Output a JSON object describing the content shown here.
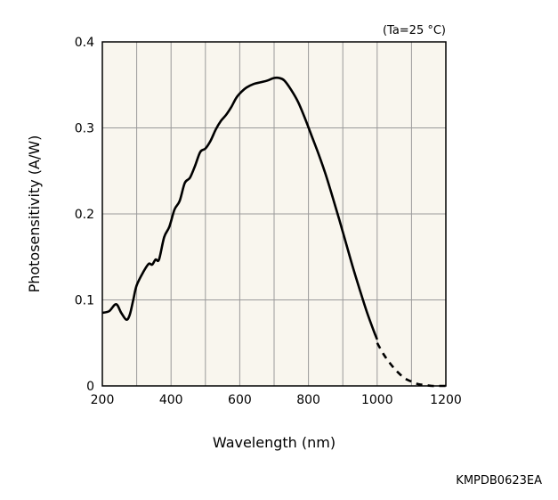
{
  "chart_data": {
    "type": "line",
    "xlabel": "Wavelength (nm)",
    "ylabel": "Photosensitivity (A/W)",
    "condition": "(Ta=25 °C)",
    "code": "KMPDB0623EA",
    "xlim": [
      200,
      1200
    ],
    "ylim": [
      0,
      0.4
    ],
    "x_ticks": [
      200,
      400,
      600,
      800,
      1000,
      1200
    ],
    "x_tick_labels": [
      "200",
      "400",
      "600",
      "800",
      "1000",
      "1200"
    ],
    "y_ticks": [
      0,
      0.1,
      0.2,
      0.3,
      0.4
    ],
    "y_tick_labels": [
      "0",
      "0.1",
      "0.2",
      "0.3",
      "0.4"
    ],
    "grid": true,
    "colors": {
      "plot_background": "#f9f6ee",
      "grid": "#9a9a9a",
      "line": "#000000"
    },
    "series": [
      {
        "style": "solid",
        "x": [
          200,
          220,
          240,
          255,
          270,
          280,
          290,
          300,
          320,
          335,
          345,
          355,
          365,
          380,
          395,
          410,
          425,
          440,
          455,
          470,
          485,
          500,
          515,
          530,
          545,
          560,
          575,
          590,
          605,
          620,
          640,
          660,
          680,
          700,
          715,
          730,
          750,
          770,
          790,
          810,
          830,
          850,
          870,
          890,
          910,
          930,
          950,
          970,
          990,
          1000
        ],
        "y": [
          0.085,
          0.087,
          0.095,
          0.085,
          0.077,
          0.083,
          0.1,
          0.117,
          0.133,
          0.142,
          0.141,
          0.147,
          0.147,
          0.173,
          0.185,
          0.205,
          0.215,
          0.236,
          0.242,
          0.256,
          0.272,
          0.276,
          0.285,
          0.298,
          0.308,
          0.315,
          0.324,
          0.335,
          0.342,
          0.347,
          0.351,
          0.353,
          0.355,
          0.358,
          0.358,
          0.355,
          0.344,
          0.33,
          0.311,
          0.29,
          0.269,
          0.246,
          0.22,
          0.193,
          0.165,
          0.137,
          0.111,
          0.086,
          0.064,
          0.054
        ]
      },
      {
        "style": "dashed",
        "x": [
          1000,
          1020,
          1040,
          1060,
          1080,
          1100,
          1120,
          1140,
          1160,
          1180,
          1200
        ],
        "y": [
          0.05,
          0.036,
          0.025,
          0.016,
          0.009,
          0.005,
          0.002,
          0.001,
          0.0,
          0.0,
          0.0
        ]
      }
    ]
  }
}
